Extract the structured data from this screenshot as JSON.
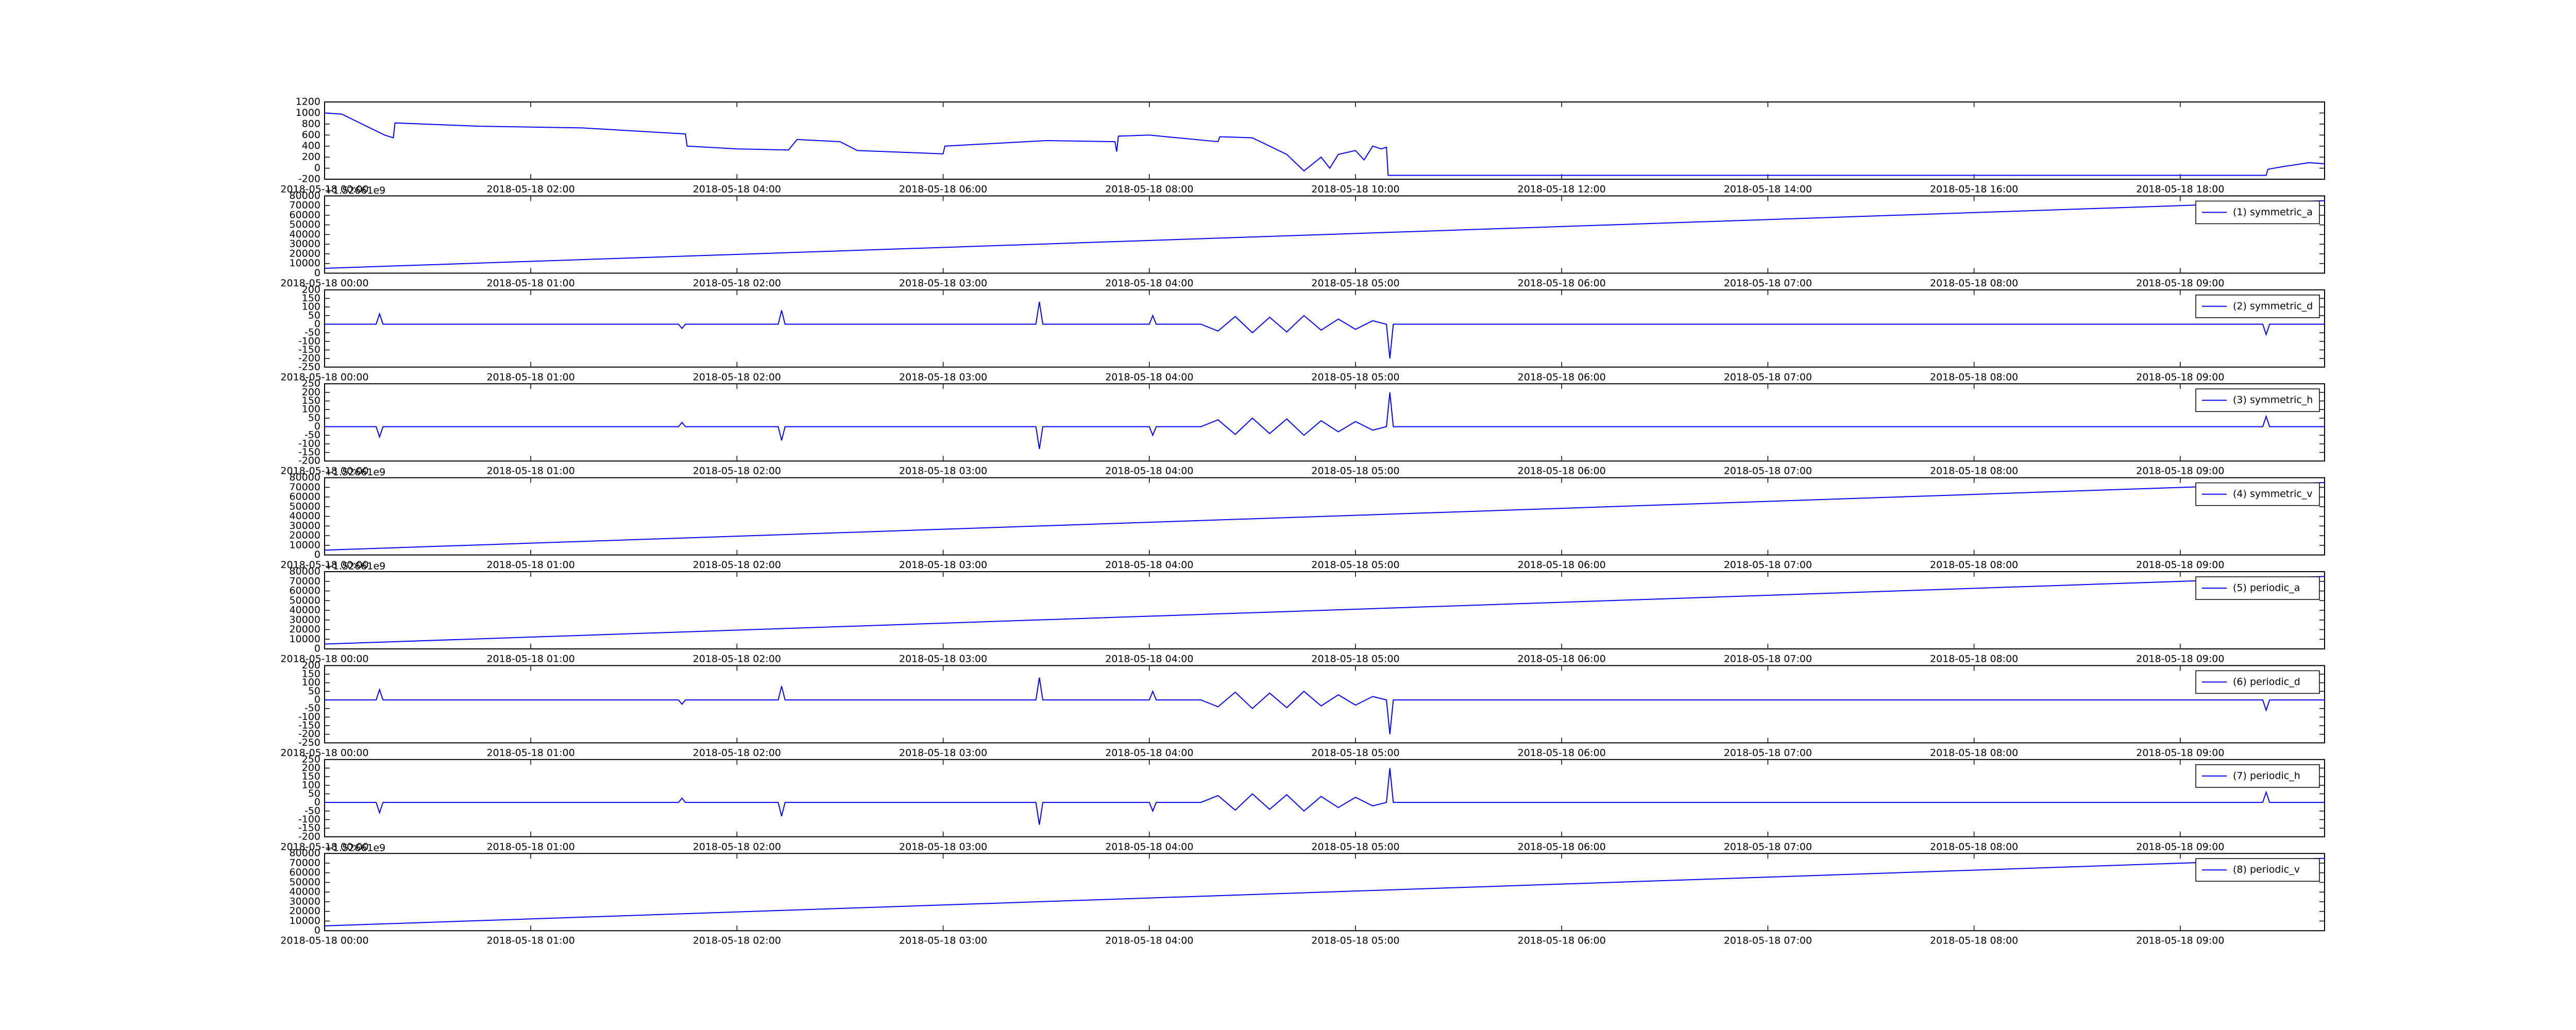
{
  "chart_data": [
    {
      "type": "line",
      "color": "#0000ff",
      "x": [
        "2018-05-18 00:00",
        "2018-05-18 00:10",
        "2018-05-18 00:35",
        "2018-05-18 00:40",
        "2018-05-18 00:41",
        "2018-05-18 01:30",
        "2018-05-18 02:30",
        "2018-05-18 03:30",
        "2018-05-18 03:31",
        "2018-05-18 04:00",
        "2018-05-18 04:30",
        "2018-05-18 04:35",
        "2018-05-18 05:00",
        "2018-05-18 05:10",
        "2018-05-18 06:00",
        "2018-05-18 06:01",
        "2018-05-18 07:00",
        "2018-05-18 07:40",
        "2018-05-18 07:41",
        "2018-05-18 07:42",
        "2018-05-18 08:00",
        "2018-05-18 08:40",
        "2018-05-18 08:41",
        "2018-05-18 09:00",
        "2018-05-18 09:20",
        "2018-05-18 09:30",
        "2018-05-18 09:40",
        "2018-05-18 09:45",
        "2018-05-18 09:50",
        "2018-05-18 10:00",
        "2018-05-18 10:05",
        "2018-05-18 10:10",
        "2018-05-18 10:15",
        "2018-05-18 10:18",
        "2018-05-18 10:19",
        "2018-05-18 18:50",
        "2018-05-18 18:51",
        "2018-05-18 19:00",
        "2018-05-18 19:15",
        "2018-05-18 19:24"
      ],
      "values": [
        1000,
        980,
        600,
        550,
        820,
        760,
        730,
        620,
        400,
        350,
        330,
        520,
        480,
        320,
        260,
        400,
        500,
        480,
        300,
        580,
        600,
        480,
        570,
        550,
        250,
        -50,
        200,
        0,
        250,
        320,
        150,
        400,
        350,
        380,
        -130,
        -130,
        -20,
        30,
        100,
        80
      ],
      "xlim": [
        "2018-05-18 00:00",
        "2018-05-18 19:24"
      ],
      "xticks": [
        "2018-05-18 00:00",
        "2018-05-18 02:00",
        "2018-05-18 04:00",
        "2018-05-18 06:00",
        "2018-05-18 08:00",
        "2018-05-18 10:00",
        "2018-05-18 12:00",
        "2018-05-18 14:00",
        "2018-05-18 16:00",
        "2018-05-18 18:00"
      ],
      "ylim": [
        -200,
        1200
      ],
      "yticks": [
        -200,
        0,
        200,
        400,
        600,
        800,
        1000,
        1200
      ]
    },
    {
      "type": "line",
      "legend": "upper right",
      "y_offset_text": "+1.52661e9",
      "x": [
        "2018-05-18 00:00",
        "2018-05-18 09:42"
      ],
      "series": [
        {
          "name": "(1) symmetric_a",
          "color": "#0000ff",
          "values": [
            5000,
            75000
          ]
        }
      ],
      "xlim": [
        "2018-05-18 00:00",
        "2018-05-18 09:42"
      ],
      "xticks": [
        "2018-05-18 00:00",
        "2018-05-18 01:00",
        "2018-05-18 02:00",
        "2018-05-18 03:00",
        "2018-05-18 04:00",
        "2018-05-18 05:00",
        "2018-05-18 06:00",
        "2018-05-18 07:00",
        "2018-05-18 08:00",
        "2018-05-18 09:00"
      ],
      "ylim": [
        0,
        80000
      ],
      "yticks": [
        0,
        10000,
        20000,
        30000,
        40000,
        50000,
        60000,
        70000,
        80000
      ]
    },
    {
      "type": "line",
      "legend": "upper right",
      "x": [
        "2018-05-18 00:00",
        "2018-05-18 00:15",
        "2018-05-18 00:16",
        "2018-05-18 00:17",
        "2018-05-18 01:43",
        "2018-05-18 01:44",
        "2018-05-18 01:45",
        "2018-05-18 02:12",
        "2018-05-18 02:13",
        "2018-05-18 02:14",
        "2018-05-18 03:27",
        "2018-05-18 03:28",
        "2018-05-18 03:29",
        "2018-05-18 04:00",
        "2018-05-18 04:01",
        "2018-05-18 04:02",
        "2018-05-18 04:15",
        "2018-05-18 04:20",
        "2018-05-18 04:25",
        "2018-05-18 04:30",
        "2018-05-18 04:35",
        "2018-05-18 04:40",
        "2018-05-18 04:45",
        "2018-05-18 04:50",
        "2018-05-18 04:55",
        "2018-05-18 05:00",
        "2018-05-18 05:05",
        "2018-05-18 05:09",
        "2018-05-18 05:10",
        "2018-05-18 05:11",
        "2018-05-18 09:24",
        "2018-05-18 09:25",
        "2018-05-18 09:26",
        "2018-05-18 09:42"
      ],
      "series": [
        {
          "name": "(2) symmetric_d",
          "color": "#0000ff",
          "values": [
            0,
            0,
            60,
            0,
            0,
            -25,
            0,
            0,
            80,
            0,
            0,
            130,
            0,
            0,
            50,
            0,
            0,
            -40,
            45,
            -50,
            40,
            -45,
            50,
            -35,
            30,
            -30,
            20,
            0,
            -200,
            0,
            0,
            -60,
            0,
            0
          ]
        }
      ],
      "xlim": [
        "2018-05-18 00:00",
        "2018-05-18 09:42"
      ],
      "xticks": [
        "2018-05-18 00:00",
        "2018-05-18 01:00",
        "2018-05-18 02:00",
        "2018-05-18 03:00",
        "2018-05-18 04:00",
        "2018-05-18 05:00",
        "2018-05-18 06:00",
        "2018-05-18 07:00",
        "2018-05-18 08:00",
        "2018-05-18 09:00"
      ],
      "ylim": [
        -250,
        200
      ],
      "yticks": [
        -250,
        -200,
        -150,
        -100,
        -50,
        0,
        50,
        100,
        150,
        200
      ]
    },
    {
      "type": "line",
      "legend": "upper right",
      "x": [
        "2018-05-18 00:00",
        "2018-05-18 00:15",
        "2018-05-18 00:16",
        "2018-05-18 00:17",
        "2018-05-18 01:43",
        "2018-05-18 01:44",
        "2018-05-18 01:45",
        "2018-05-18 02:12",
        "2018-05-18 02:13",
        "2018-05-18 02:14",
        "2018-05-18 03:27",
        "2018-05-18 03:28",
        "2018-05-18 03:29",
        "2018-05-18 04:00",
        "2018-05-18 04:01",
        "2018-05-18 04:02",
        "2018-05-18 04:15",
        "2018-05-18 04:20",
        "2018-05-18 04:25",
        "2018-05-18 04:30",
        "2018-05-18 04:35",
        "2018-05-18 04:40",
        "2018-05-18 04:45",
        "2018-05-18 04:50",
        "2018-05-18 04:55",
        "2018-05-18 05:00",
        "2018-05-18 05:05",
        "2018-05-18 05:09",
        "2018-05-18 05:10",
        "2018-05-18 05:11",
        "2018-05-18 09:24",
        "2018-05-18 09:25",
        "2018-05-18 09:26",
        "2018-05-18 09:42"
      ],
      "series": [
        {
          "name": "(3) symmetric_h",
          "color": "#0000ff",
          "values": [
            0,
            0,
            -60,
            0,
            0,
            25,
            0,
            0,
            -80,
            0,
            0,
            -130,
            0,
            0,
            -50,
            0,
            0,
            40,
            -45,
            50,
            -40,
            45,
            -50,
            35,
            -30,
            30,
            -20,
            0,
            200,
            0,
            0,
            60,
            0,
            0
          ]
        }
      ],
      "xlim": [
        "2018-05-18 00:00",
        "2018-05-18 09:42"
      ],
      "xticks": [
        "2018-05-18 00:00",
        "2018-05-18 01:00",
        "2018-05-18 02:00",
        "2018-05-18 03:00",
        "2018-05-18 04:00",
        "2018-05-18 05:00",
        "2018-05-18 06:00",
        "2018-05-18 07:00",
        "2018-05-18 08:00",
        "2018-05-18 09:00"
      ],
      "ylim": [
        -200,
        250
      ],
      "yticks": [
        -200,
        -150,
        -100,
        -50,
        0,
        50,
        100,
        150,
        200,
        250
      ]
    },
    {
      "type": "line",
      "legend": "upper right",
      "y_offset_text": "+1.52661e9",
      "x": [
        "2018-05-18 00:00",
        "2018-05-18 09:42"
      ],
      "series": [
        {
          "name": "(4) symmetric_v",
          "color": "#0000ff",
          "values": [
            5000,
            75000
          ]
        }
      ],
      "xlim": [
        "2018-05-18 00:00",
        "2018-05-18 09:42"
      ],
      "xticks": [
        "2018-05-18 00:00",
        "2018-05-18 01:00",
        "2018-05-18 02:00",
        "2018-05-18 03:00",
        "2018-05-18 04:00",
        "2018-05-18 05:00",
        "2018-05-18 06:00",
        "2018-05-18 07:00",
        "2018-05-18 08:00",
        "2018-05-18 09:00"
      ],
      "ylim": [
        0,
        80000
      ],
      "yticks": [
        0,
        10000,
        20000,
        30000,
        40000,
        50000,
        60000,
        70000,
        80000
      ]
    },
    {
      "type": "line",
      "legend": "upper right",
      "y_offset_text": "+1.52661e9",
      "x": [
        "2018-05-18 00:00",
        "2018-05-18 09:42"
      ],
      "series": [
        {
          "name": "(5) periodic_a",
          "color": "#0000ff",
          "values": [
            5000,
            75000
          ]
        }
      ],
      "xlim": [
        "2018-05-18 00:00",
        "2018-05-18 09:42"
      ],
      "xticks": [
        "2018-05-18 00:00",
        "2018-05-18 01:00",
        "2018-05-18 02:00",
        "2018-05-18 03:00",
        "2018-05-18 04:00",
        "2018-05-18 05:00",
        "2018-05-18 06:00",
        "2018-05-18 07:00",
        "2018-05-18 08:00",
        "2018-05-18 09:00"
      ],
      "ylim": [
        0,
        80000
      ],
      "yticks": [
        0,
        10000,
        20000,
        30000,
        40000,
        50000,
        60000,
        70000,
        80000
      ]
    },
    {
      "type": "line",
      "legend": "upper right",
      "x": [
        "2018-05-18 00:00",
        "2018-05-18 00:15",
        "2018-05-18 00:16",
        "2018-05-18 00:17",
        "2018-05-18 01:43",
        "2018-05-18 01:44",
        "2018-05-18 01:45",
        "2018-05-18 02:12",
        "2018-05-18 02:13",
        "2018-05-18 02:14",
        "2018-05-18 03:27",
        "2018-05-18 03:28",
        "2018-05-18 03:29",
        "2018-05-18 04:00",
        "2018-05-18 04:01",
        "2018-05-18 04:02",
        "2018-05-18 04:15",
        "2018-05-18 04:20",
        "2018-05-18 04:25",
        "2018-05-18 04:30",
        "2018-05-18 04:35",
        "2018-05-18 04:40",
        "2018-05-18 04:45",
        "2018-05-18 04:50",
        "2018-05-18 04:55",
        "2018-05-18 05:00",
        "2018-05-18 05:05",
        "2018-05-18 05:09",
        "2018-05-18 05:10",
        "2018-05-18 05:11",
        "2018-05-18 09:24",
        "2018-05-18 09:25",
        "2018-05-18 09:26",
        "2018-05-18 09:42"
      ],
      "series": [
        {
          "name": "(6) periodic_d",
          "color": "#0000ff",
          "values": [
            0,
            0,
            60,
            0,
            0,
            -25,
            0,
            0,
            80,
            0,
            0,
            130,
            0,
            0,
            50,
            0,
            0,
            -40,
            45,
            -50,
            40,
            -45,
            50,
            -35,
            30,
            -30,
            20,
            0,
            -200,
            0,
            0,
            -60,
            0,
            0
          ]
        }
      ],
      "xlim": [
        "2018-05-18 00:00",
        "2018-05-18 09:42"
      ],
      "xticks": [
        "2018-05-18 00:00",
        "2018-05-18 01:00",
        "2018-05-18 02:00",
        "2018-05-18 03:00",
        "2018-05-18 04:00",
        "2018-05-18 05:00",
        "2018-05-18 06:00",
        "2018-05-18 07:00",
        "2018-05-18 08:00",
        "2018-05-18 09:00"
      ],
      "ylim": [
        -250,
        200
      ],
      "yticks": [
        -250,
        -200,
        -150,
        -100,
        -50,
        0,
        50,
        100,
        150,
        200
      ]
    },
    {
      "type": "line",
      "legend": "upper right",
      "x": [
        "2018-05-18 00:00",
        "2018-05-18 00:15",
        "2018-05-18 00:16",
        "2018-05-18 00:17",
        "2018-05-18 01:43",
        "2018-05-18 01:44",
        "2018-05-18 01:45",
        "2018-05-18 02:12",
        "2018-05-18 02:13",
        "2018-05-18 02:14",
        "2018-05-18 03:27",
        "2018-05-18 03:28",
        "2018-05-18 03:29",
        "2018-05-18 04:00",
        "2018-05-18 04:01",
        "2018-05-18 04:02",
        "2018-05-18 04:15",
        "2018-05-18 04:20",
        "2018-05-18 04:25",
        "2018-05-18 04:30",
        "2018-05-18 04:35",
        "2018-05-18 04:40",
        "2018-05-18 04:45",
        "2018-05-18 04:50",
        "2018-05-18 04:55",
        "2018-05-18 05:00",
        "2018-05-18 05:05",
        "2018-05-18 05:09",
        "2018-05-18 05:10",
        "2018-05-18 05:11",
        "2018-05-18 09:24",
        "2018-05-18 09:25",
        "2018-05-18 09:26",
        "2018-05-18 09:42"
      ],
      "series": [
        {
          "name": "(7) periodic_h",
          "color": "#0000ff",
          "values": [
            0,
            0,
            -60,
            0,
            0,
            25,
            0,
            0,
            -80,
            0,
            0,
            -130,
            0,
            0,
            -50,
            0,
            0,
            40,
            -45,
            50,
            -40,
            45,
            -50,
            35,
            -30,
            30,
            -20,
            0,
            200,
            0,
            0,
            60,
            0,
            0
          ]
        }
      ],
      "xlim": [
        "2018-05-18 00:00",
        "2018-05-18 09:42"
      ],
      "xticks": [
        "2018-05-18 00:00",
        "2018-05-18 01:00",
        "2018-05-18 02:00",
        "2018-05-18 03:00",
        "2018-05-18 04:00",
        "2018-05-18 05:00",
        "2018-05-18 06:00",
        "2018-05-18 07:00",
        "2018-05-18 08:00",
        "2018-05-18 09:00"
      ],
      "ylim": [
        -200,
        250
      ],
      "yticks": [
        -200,
        -150,
        -100,
        -50,
        0,
        50,
        100,
        150,
        200,
        250
      ]
    },
    {
      "type": "line",
      "legend": "upper right",
      "y_offset_text": "+1.52661e9",
      "x": [
        "2018-05-18 00:00",
        "2018-05-18 09:42"
      ],
      "series": [
        {
          "name": "(8) periodic_v",
          "color": "#0000ff",
          "values": [
            5000,
            75000
          ]
        }
      ],
      "xlim": [
        "2018-05-18 00:00",
        "2018-05-18 09:42"
      ],
      "xticks": [
        "2018-05-18 00:00",
        "2018-05-18 01:00",
        "2018-05-18 02:00",
        "2018-05-18 03:00",
        "2018-05-18 04:00",
        "2018-05-18 05:00",
        "2018-05-18 06:00",
        "2018-05-18 07:00",
        "2018-05-18 08:00",
        "2018-05-18 09:00"
      ],
      "ylim": [
        0,
        80000
      ],
      "yticks": [
        0,
        10000,
        20000,
        30000,
        40000,
        50000,
        60000,
        70000,
        80000
      ]
    }
  ]
}
